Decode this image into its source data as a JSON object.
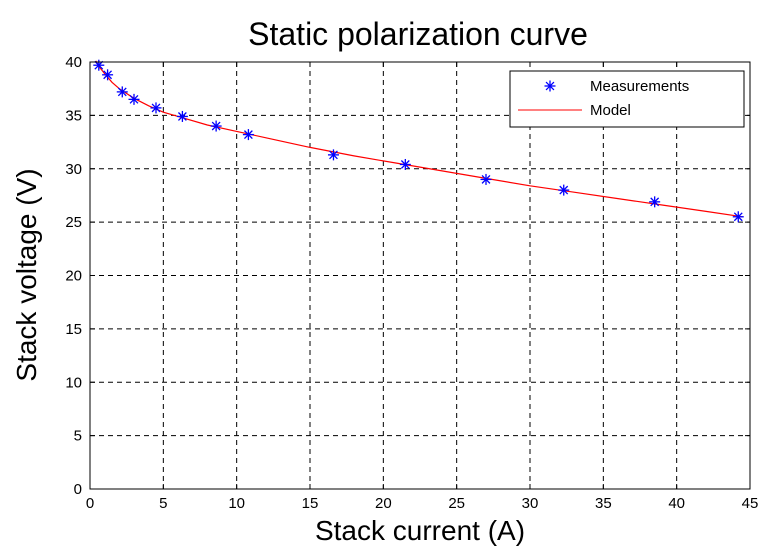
{
  "chart_data": {
    "type": "scatter",
    "title": "Static polarization curve",
    "xlabel": "Stack current (A)",
    "ylabel": "Stack voltage (V)",
    "xlim": [
      0,
      45
    ],
    "ylim": [
      0,
      40
    ],
    "xticks": [
      0,
      5,
      10,
      15,
      20,
      25,
      30,
      35,
      40,
      45
    ],
    "yticks": [
      0,
      5,
      10,
      15,
      20,
      25,
      30,
      35,
      40
    ],
    "grid": true,
    "legend_position": "top-right",
    "series": [
      {
        "name": "Measurements",
        "kind": "markers",
        "marker": "asterisk",
        "color": "#0000ff",
        "x": [
          0.6,
          1.2,
          2.2,
          3.0,
          4.5,
          6.3,
          8.6,
          10.8,
          16.6,
          21.5,
          27.0,
          32.3,
          38.5,
          44.2
        ],
        "y": [
          39.7,
          38.8,
          37.2,
          36.5,
          35.7,
          34.9,
          34.0,
          33.2,
          31.3,
          30.4,
          29.0,
          28.0,
          26.9,
          25.5
        ]
      },
      {
        "name": "Model",
        "kind": "line",
        "color": "#ff0000",
        "x": [
          0.4,
          0.6,
          1.0,
          1.5,
          2.0,
          3.0,
          4.0,
          5.0,
          6.0,
          8.0,
          10.0,
          12.0,
          15.0,
          18.0,
          21.0,
          24.0,
          27.0,
          30.0,
          33.0,
          36.0,
          39.0,
          42.0,
          44.5
        ],
        "y": [
          40.1,
          39.6,
          38.9,
          38.1,
          37.5,
          36.6,
          35.9,
          35.3,
          34.9,
          34.1,
          33.5,
          32.9,
          32.0,
          31.2,
          30.5,
          29.8,
          29.1,
          28.4,
          27.8,
          27.2,
          26.6,
          26.0,
          25.5
        ]
      }
    ]
  }
}
